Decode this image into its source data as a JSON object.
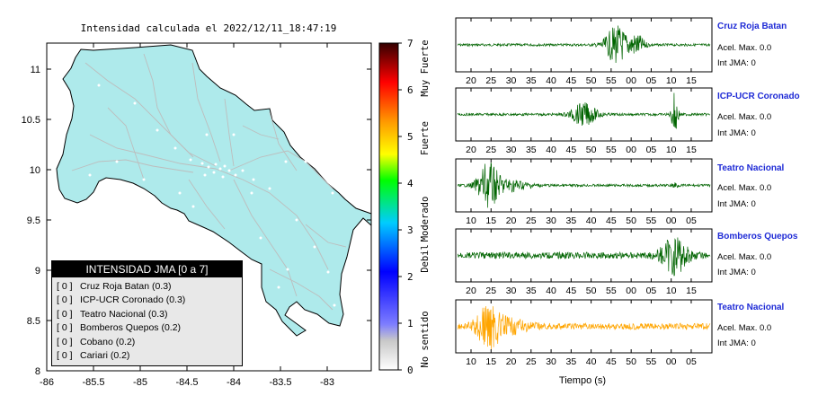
{
  "map": {
    "title": "Intensidad calculada el 2022/12/11_18:47:19",
    "lat_ticks": [
      "11",
      "10.5",
      "10",
      "9.5",
      "9",
      "8.5",
      "8"
    ],
    "lon_ticks": [
      "-86",
      "-85.5",
      "-85",
      "-84.5",
      "-84",
      "-83.5",
      "-83"
    ],
    "land_color": "#aeeaeb",
    "road_color": "#bdbdbd"
  },
  "colorbar": {
    "ticks": [
      "7",
      "6",
      "5",
      "4",
      "3",
      "2",
      "1",
      "0"
    ],
    "labels": [
      "Muy Fuerte",
      "Fuerte",
      "Moderado",
      "Debil",
      "No sentido"
    ]
  },
  "legend": {
    "title": "INTENSIDAD JMA [0 a 7]",
    "rows": [
      {
        "level": "[ 0 ]",
        "name": "Cruz Roja Batan (0.3)"
      },
      {
        "level": "[ 0 ]",
        "name": "ICP-UCR Coronado (0.3)"
      },
      {
        "level": "[ 0 ]",
        "name": "Teatro Nacional (0.3)"
      },
      {
        "level": "[ 0 ]",
        "name": "Bomberos Quepos (0.2)"
      },
      {
        "level": "[ 0 ]",
        "name": "Cobano (0.2)"
      },
      {
        "level": "[ 0 ]",
        "name": "Cariari (0.2)"
      }
    ]
  },
  "traces": [
    {
      "name": "Cruz Roja Batan",
      "accel": "Acel. Max. 0.0",
      "jma": "Int JMA: 0",
      "color": "#006400",
      "ticks": [
        "20",
        "25",
        "30",
        "35",
        "40",
        "45",
        "50",
        "55",
        "00",
        "05",
        "10",
        "15"
      ]
    },
    {
      "name": "ICP-UCR Coronado",
      "accel": "Acel. Max. 0.0",
      "jma": "Int JMA: 0",
      "color": "#006400",
      "ticks": [
        "20",
        "25",
        "30",
        "35",
        "40",
        "45",
        "50",
        "55",
        "00",
        "05",
        "10",
        "15"
      ]
    },
    {
      "name": "Teatro Nacional",
      "accel": "Acel. Max. 0.0",
      "jma": "Int JMA: 0",
      "color": "#006400",
      "ticks": [
        "10",
        "15",
        "20",
        "25",
        "30",
        "35",
        "40",
        "45",
        "50",
        "55",
        "00",
        "05"
      ]
    },
    {
      "name": "Bomberos Quepos",
      "accel": "Acel. Max. 0.0",
      "jma": "Int JMA: 0",
      "color": "#006400",
      "ticks": [
        "20",
        "25",
        "30",
        "35",
        "40",
        "45",
        "50",
        "55",
        "00",
        "05",
        "10",
        "15"
      ]
    },
    {
      "name": "Teatro Nacional",
      "accel": "Acel. Max. 0.0",
      "jma": "Int JMA: 0",
      "color": "#ffa500",
      "ticks": [
        "10",
        "15",
        "20",
        "25",
        "30",
        "35",
        "40",
        "45",
        "50",
        "55",
        "00",
        "05"
      ]
    }
  ],
  "time_axis_label": "Tiempo (s)"
}
